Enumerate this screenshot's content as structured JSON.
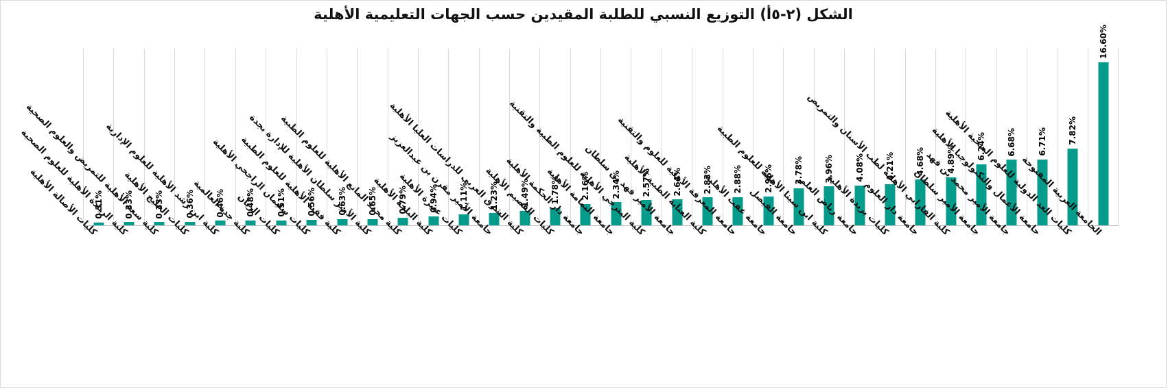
{
  "chart_data": {
    "type": "bar",
    "title": "الشكل (٢-٥أ) التوزيع النسبي للطلبة المقيدين حسب الجهات التعليمية الأهلية",
    "categories": [
      "كليات الأصالة الأهلية",
      "كلية الريادة الأهلية للعلوم الصحية",
      "كلية سعد الأهلية للتمريض والعلوم الصحية",
      "كليات الخليج الأهلية",
      "كلية ابن رشد الأهلية للعلوم الإدارية",
      "كلية جدة العالمية",
      "كليات الريان",
      "كليات سليمان الراجحي الأهلية",
      "كلية فقيه الأهلية للعلوم الطبية",
      "كلية الأمير سلطان الأهلية للإدارة بجدة",
      "كلية محمد المانع الأهلية للعلوم الطبية",
      "كلية الباحة الأهلية",
      "كليات عنيزة الأهلية",
      "جامعة الأمير مقرن بن عبدالعزيز",
      "كلية الشرق العربي للدراسات العليا الأهلية",
      "كليات القصيم الأهلية",
      "جامعة دار الحكمة الأهلية",
      "جامعة اليمامة الأهلية",
      "كلية البترجي الأهلية للعلوم الطبية والتقنية",
      "جامعة الأمير فهد بن سلطان",
      "كلية العناية الطبية الأهلية",
      "جامعة المعرفة الأهلية للعلوم والتقنية",
      "جامعة عفت الأهلية",
      "جامعة الفيصل",
      "كلية ابن سينا الأهلية للعلوم الطبية",
      "جامعة رياض العلم",
      "كليات بريدة الأهلية",
      "جامعة دار العلوم",
      "كلية الفارابي الأهلية لطب الأسنان والتمريض",
      "جامعة الأمير سلطان",
      "جامعة الأمير محمد بن فهد",
      "جامعة الأعمال والتكنولوجيا الأهلية",
      "كليات الغد الدولية للعلوم الصحية الأهلية",
      "الجامعة العربية المفتوحة"
    ],
    "values": [
      0.31,
      0.33,
      0.33,
      0.36,
      0.46,
      0.48,
      0.51,
      0.56,
      0.63,
      0.65,
      0.79,
      0.94,
      1.11,
      1.23,
      1.49,
      1.78,
      2.16,
      2.34,
      2.57,
      2.64,
      2.83,
      2.88,
      2.96,
      3.78,
      3.96,
      4.08,
      4.21,
      4.68,
      4.89,
      6.24,
      6.68,
      6.71,
      7.82,
      16.6
    ],
    "value_labels": [
      "0.31%",
      "0.33%",
      "0.33%",
      "0.36%",
      "0.46%",
      "0.48%",
      "0.51%",
      "0.56%",
      "0.63%",
      "0.65%",
      "0.79%",
      "0.94%",
      "1.11%",
      "1.23%",
      "1.49%",
      "1.78%",
      "2.16%",
      "2.34%",
      "2.57%",
      "2.64%",
      "2.83%",
      "2.88%",
      "2.96%",
      "3.78%",
      "3.96%",
      "4.08%",
      "4.21%",
      "4.68%",
      "4.89%",
      "6.24%",
      "6.68%",
      "6.71%",
      "7.82%",
      "16.60%"
    ],
    "xlabel": "",
    "ylabel": "",
    "ylim": [
      0,
      18
    ],
    "grid": "vertical-category-separators",
    "legend": "none",
    "data_label_rotation": 90,
    "category_label_rotation": -45,
    "bar_color": "#069C8C",
    "gridline_color": "#D9D9D9",
    "axis_line_color": "#BFBFBF",
    "title_color": "#111111"
  }
}
